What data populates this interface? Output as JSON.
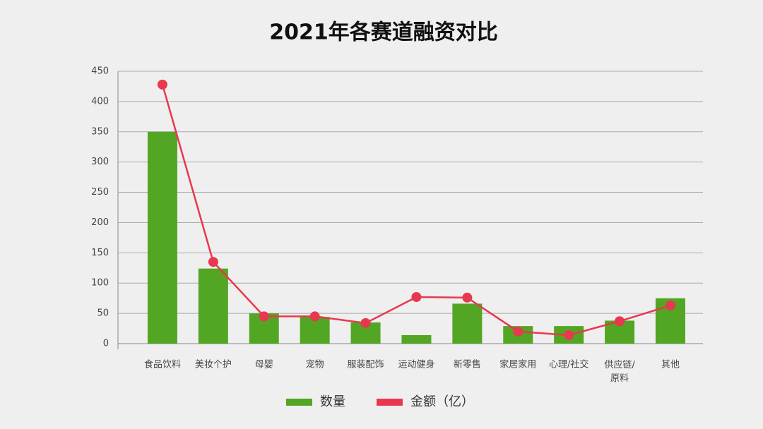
{
  "chart_data": {
    "type": "bar",
    "title": "2021年各赛道融资对比",
    "categories": [
      "食品饮料",
      "美妆个护",
      "母婴",
      "宠物",
      "服装配饰",
      "运动健身",
      "新零售",
      "家居家用",
      "心理/社交",
      "供应链/原料",
      "其他"
    ],
    "series": [
      {
        "name": "数量",
        "type": "bar",
        "color": "#52a623",
        "values": [
          350,
          124,
          50,
          44,
          35,
          14,
          66,
          29,
          29,
          38,
          75
        ]
      },
      {
        "name": "金额（亿）",
        "type": "line",
        "color": "#e8384f",
        "values": [
          428,
          135,
          45,
          45,
          34,
          77,
          76,
          20,
          14,
          37,
          63
        ]
      }
    ],
    "ylim": [
      0,
      450
    ],
    "yticks": [
      0,
      50,
      100,
      150,
      200,
      250,
      300,
      350,
      400,
      450
    ],
    "grid": true,
    "legend": "bottom"
  }
}
